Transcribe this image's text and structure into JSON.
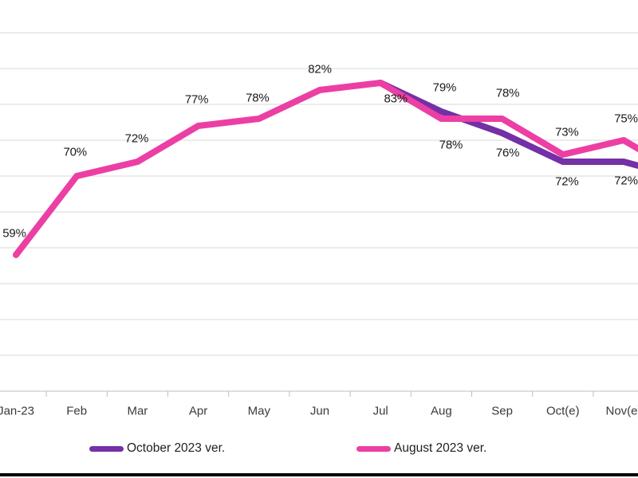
{
  "chart_data": {
    "type": "line",
    "title": "",
    "xlabel": "",
    "ylabel": "",
    "categories": [
      "Jan-23",
      "Feb",
      "Mar",
      "Apr",
      "May",
      "Jun",
      "Jul",
      "Aug",
      "Sep",
      "Oct(e)",
      "Nov(e)"
    ],
    "ylim": [
      40,
      90
    ],
    "grid_step": 5,
    "grid": true,
    "unit": "%",
    "legend_position": "bottom",
    "series": [
      {
        "name": "October 2023 ver.",
        "color": "#7430A6",
        "values": [
          null,
          null,
          null,
          null,
          null,
          null,
          83,
          79,
          76,
          72,
          72
        ],
        "edge_exit_value": 71.4,
        "labels": [
          {
            "text": "83%",
            "i": 6,
            "v": 83,
            "ox": 19,
            "oy": 20
          },
          {
            "text": "79%",
            "i": 7,
            "v": 79,
            "ox": 4,
            "oy": -30
          },
          {
            "text": "76%",
            "i": 8,
            "v": 76,
            "ox": 7,
            "oy": 25
          },
          {
            "text": "72%",
            "i": 9,
            "v": 72,
            "ox": 5,
            "oy": 25
          },
          {
            "text": "72%",
            "i": 10,
            "v": 72,
            "ox": 3,
            "oy": 24
          }
        ]
      },
      {
        "name": "August 2023 ver.",
        "color": "#EC3FA4",
        "values": [
          59,
          70,
          72,
          77,
          78,
          82,
          83,
          78,
          78,
          73,
          75
        ],
        "edge_exit_value": 73.7,
        "labels": [
          {
            "text": "59%",
            "i": 0,
            "v": 59,
            "ox": -2,
            "oy": -27
          },
          {
            "text": "70%",
            "i": 1,
            "v": 70,
            "ox": -2,
            "oy": -30
          },
          {
            "text": "72%",
            "i": 2,
            "v": 72,
            "ox": -1,
            "oy": -29
          },
          {
            "text": "77%",
            "i": 3,
            "v": 77,
            "ox": -2,
            "oy": -33
          },
          {
            "text": "78%",
            "i": 4,
            "v": 78,
            "ox": -2,
            "oy": -26
          },
          {
            "text": "82%",
            "i": 5,
            "v": 82,
            "ox": 0,
            "oy": -26
          },
          {
            "text": "78%",
            "i": 7,
            "v": 78,
            "ox": 12,
            "oy": 33
          },
          {
            "text": "78%",
            "i": 8,
            "v": 78,
            "ox": 7,
            "oy": -32
          },
          {
            "text": "73%",
            "i": 9,
            "v": 73,
            "ox": 5,
            "oy": -28
          },
          {
            "text": "75%",
            "i": 10,
            "v": 75,
            "ox": 3,
            "oy": -27
          }
        ]
      }
    ],
    "axis_colors": {
      "gridline": "#D9D9D9",
      "axis_line": "#BFBFBF",
      "tick": "#BFBFBF"
    }
  }
}
